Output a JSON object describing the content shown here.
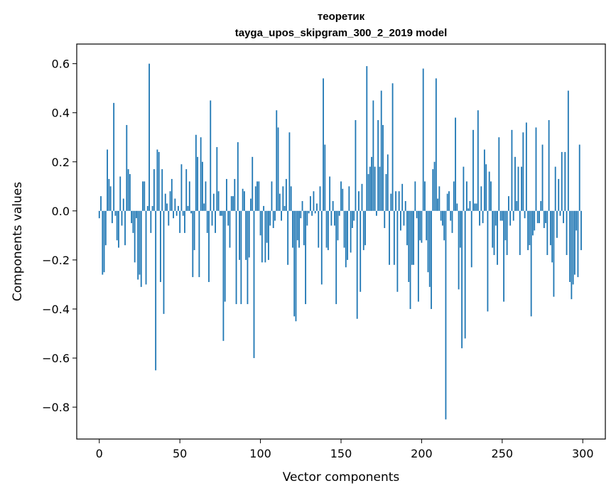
{
  "chart_data": {
    "type": "bar",
    "title": "теоретик",
    "subtitle": "tayga_upos_skipgram_300_2_2019 model",
    "xlabel": "Vector components",
    "ylabel": "Components values",
    "xlim": [
      -14,
      314
    ],
    "ylim": [
      -0.93,
      0.68
    ],
    "x_ticks": [
      0,
      50,
      100,
      150,
      200,
      250,
      300
    ],
    "y_ticks": [
      -0.8,
      -0.6,
      -0.4,
      -0.2,
      0.0,
      0.2,
      0.4,
      0.6
    ],
    "y_tick_labels": [
      "−0.8",
      "−0.6",
      "−0.4",
      "−0.2",
      "0.0",
      "0.2",
      "0.4",
      "0.6"
    ],
    "bar_color": "#1f77b4",
    "grid": false,
    "legend": "none",
    "values": [
      -0.03,
      0.06,
      -0.26,
      -0.25,
      -0.14,
      0.25,
      0.13,
      0.1,
      -0.05,
      0.44,
      -0.02,
      -0.12,
      -0.15,
      0.14,
      -0.06,
      0.05,
      -0.14,
      0.35,
      0.17,
      0.15,
      -0.05,
      -0.09,
      -0.21,
      -0.03,
      -0.28,
      -0.26,
      -0.31,
      0.12,
      0.12,
      -0.3,
      0.02,
      0.6,
      -0.09,
      0.02,
      0.17,
      -0.65,
      0.25,
      0.24,
      -0.29,
      0.17,
      -0.42,
      0.07,
      0.03,
      -0.06,
      0.08,
      0.13,
      -0.03,
      0.05,
      -0.02,
      0.02,
      -0.09,
      0.19,
      -0.02,
      -0.09,
      0.17,
      0.02,
      0.12,
      -0.01,
      -0.27,
      -0.16,
      0.31,
      0.22,
      -0.27,
      0.3,
      0.2,
      0.03,
      0.12,
      -0.09,
      -0.29,
      0.45,
      -0.06,
      0.07,
      -0.09,
      0.26,
      0.08,
      -0.02,
      -0.02,
      -0.53,
      -0.37,
      0.13,
      -0.06,
      -0.15,
      0.06,
      0.06,
      0.13,
      -0.38,
      0.28,
      -0.2,
      -0.38,
      0.09,
      0.08,
      -0.2,
      -0.38,
      -0.19,
      0.05,
      0.22,
      -0.6,
      0.1,
      0.12,
      0.12,
      -0.1,
      -0.21,
      0.02,
      -0.21,
      -0.13,
      -0.2,
      -0.06,
      0.12,
      -0.07,
      -0.04,
      0.41,
      0.34,
      0.07,
      -0.04,
      0.1,
      0.02,
      0.13,
      -0.22,
      0.32,
      0.1,
      -0.15,
      -0.43,
      -0.45,
      -0.12,
      -0.15,
      -0.03,
      0.04,
      -0.14,
      -0.38,
      -0.06,
      -0.01,
      0.06,
      -0.02,
      0.08,
      -0.01,
      0.03,
      -0.15,
      0.1,
      -0.3,
      0.54,
      0.27,
      -0.15,
      -0.16,
      0.14,
      -0.06,
      0.04,
      -0.06,
      -0.38,
      -0.12,
      -0.02,
      0.12,
      0.09,
      -0.15,
      -0.23,
      -0.2,
      0.1,
      -0.17,
      -0.07,
      -0.04,
      0.37,
      -0.44,
      0.08,
      -0.33,
      0.11,
      -0.16,
      -0.14,
      0.59,
      0.15,
      0.18,
      0.22,
      0.45,
      0.18,
      -0.02,
      0.37,
      0.18,
      0.49,
      0.35,
      -0.07,
      0.15,
      0.23,
      -0.22,
      0.07,
      0.52,
      -0.22,
      0.08,
      -0.33,
      0.08,
      -0.08,
      0.11,
      -0.06,
      0.04,
      -0.14,
      -0.29,
      -0.4,
      -0.22,
      -0.22,
      0.12,
      -0.03,
      -0.37,
      -0.12,
      -0.13,
      0.58,
      0.12,
      -0.12,
      -0.25,
      -0.31,
      -0.4,
      0.17,
      0.2,
      0.54,
      0.05,
      0.1,
      -0.04,
      -0.06,
      -0.12,
      -0.85,
      0.07,
      0.08,
      -0.04,
      -0.09,
      0.12,
      0.38,
      0.03,
      -0.32,
      -0.15,
      -0.56,
      0.18,
      -0.52,
      0.12,
      0.01,
      0.04,
      -0.23,
      0.33,
      0.03,
      0.03,
      0.41,
      -0.06,
      0.1,
      -0.05,
      0.25,
      0.19,
      -0.41,
      0.16,
      0.12,
      -0.15,
      -0.18,
      -0.06,
      -0.22,
      0.3,
      -0.04,
      -0.04,
      -0.37,
      -0.12,
      -0.18,
      0.06,
      -0.06,
      0.33,
      -0.04,
      0.22,
      0.04,
      0.18,
      -0.18,
      0.18,
      0.32,
      -0.03,
      0.36,
      -0.16,
      -0.14,
      -0.43,
      -0.1,
      -0.08,
      0.34,
      -0.05,
      -0.05,
      0.04,
      0.27,
      -0.07,
      -0.05,
      -0.18,
      0.37,
      -0.14,
      -0.21,
      -0.35,
      0.18,
      -0.11,
      0.13,
      -0.02,
      0.24,
      -0.05,
      0.24,
      -0.18,
      0.49,
      -0.29,
      -0.36,
      -0.3,
      -0.26,
      -0.08,
      -0.27,
      0.27,
      -0.16
    ]
  }
}
